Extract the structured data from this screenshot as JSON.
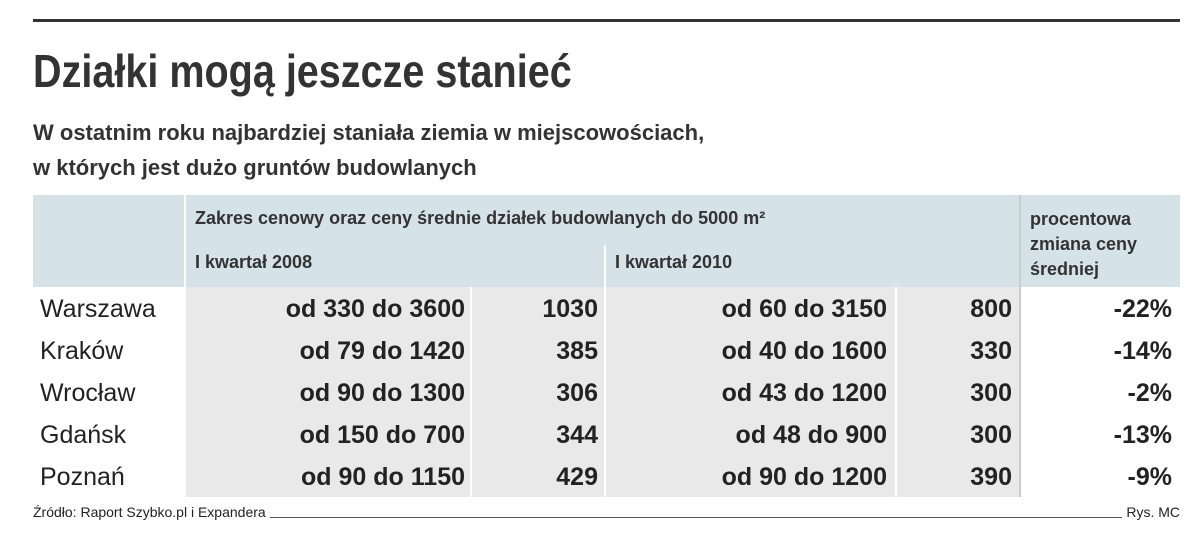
{
  "header": {
    "title": "Działki mogą jeszcze stanieć",
    "subtitle": [
      "W ostatnim roku najbardziej staniała ziemia w miejscowościach,",
      "w których jest dużo gruntów budowlanych"
    ]
  },
  "table": {
    "group_header": "Zakres cenowy oraz ceny średnie działek budowlanych do 5000 m²",
    "period_1": "I kwartał 2008",
    "period_2": "I kwartał 2010",
    "change_header": [
      "procentowa",
      "zmiana ceny",
      "średniej"
    ],
    "rows": [
      [
        "Warszawa",
        "od 330 do 3600",
        1030,
        "od 60 do 3150",
        800,
        "-22%"
      ],
      [
        "Kraków",
        "od 79 do 1420",
        385,
        "od 40 do 1600",
        330,
        "-14%"
      ],
      [
        "Wrocław",
        "od 90 do 1300",
        306,
        "od 43 do 1200",
        300,
        "-2%"
      ],
      [
        "Gdańsk",
        "od 150 do 700",
        344,
        "od 48 do 900",
        300,
        "-13%"
      ],
      [
        "Poznań",
        "od 90 do 1150",
        429,
        "od 90 do 1200",
        390,
        "-9%"
      ]
    ]
  },
  "footer": {
    "source": "Źródło: Raport Szybko.pl i Expandera",
    "credit": "Rys. MC"
  }
}
